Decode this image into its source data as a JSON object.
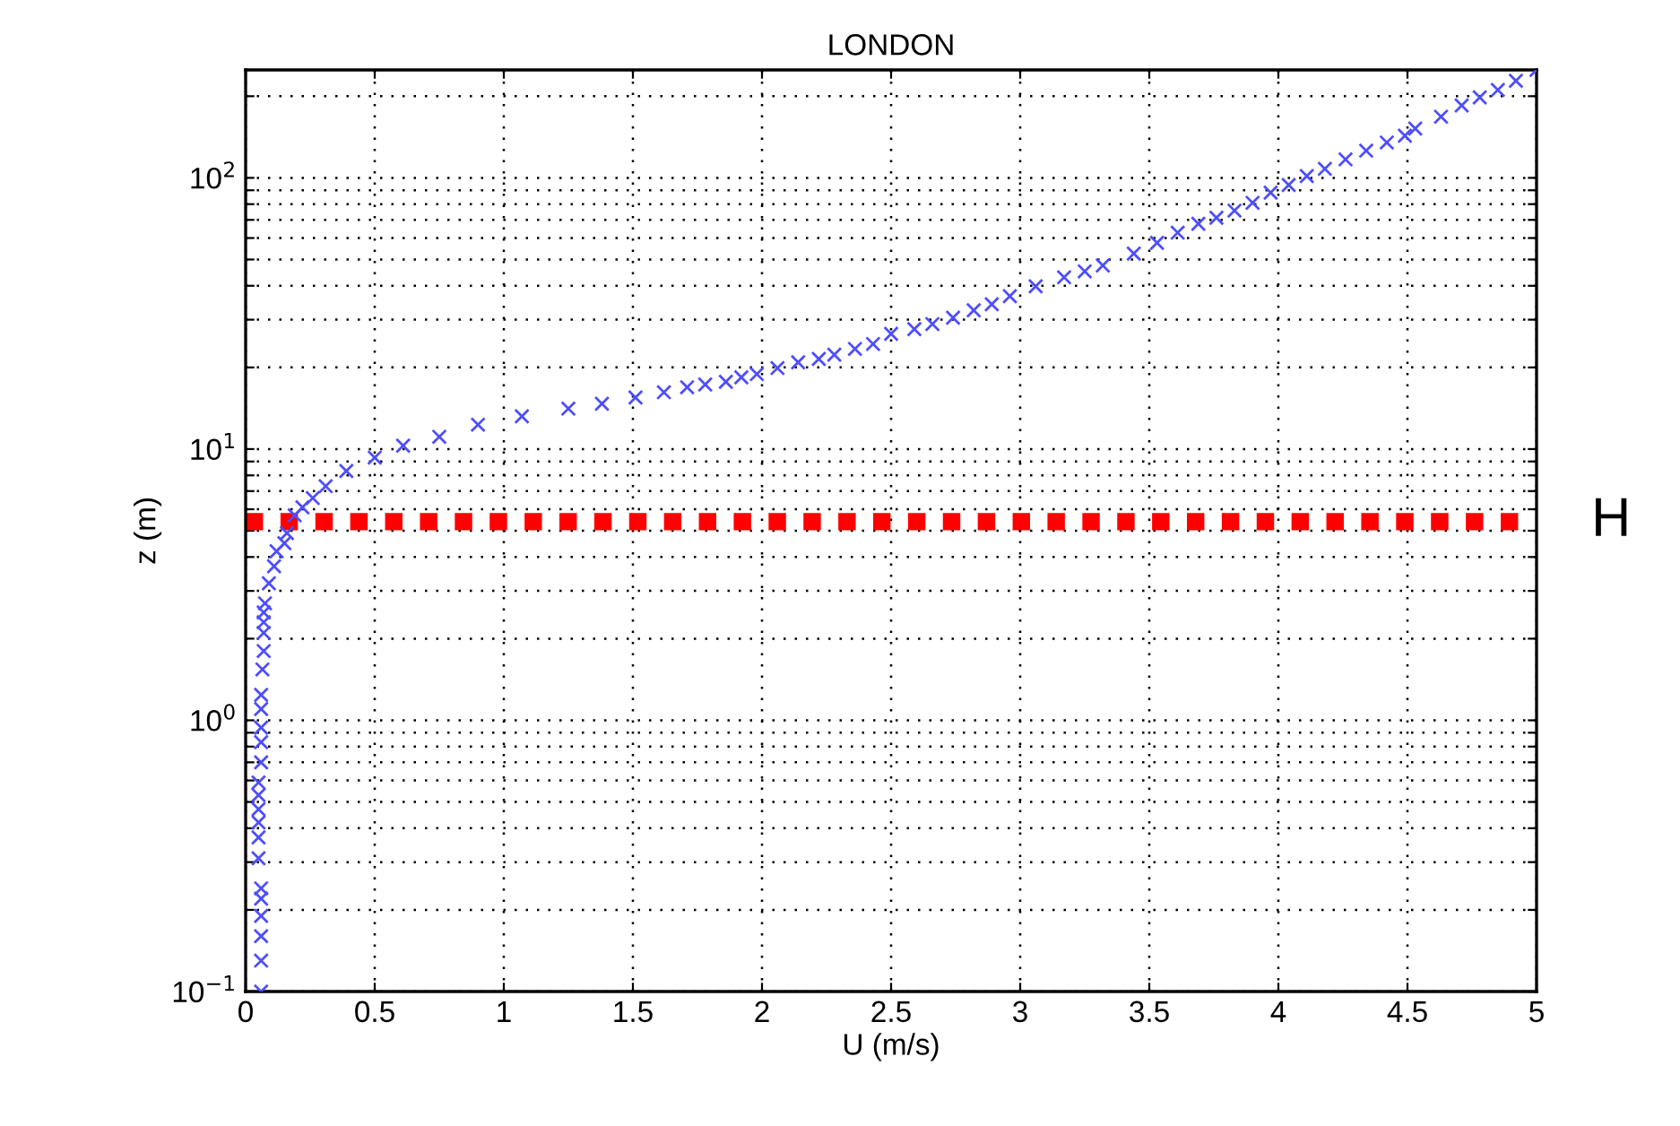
{
  "chart_data": {
    "type": "scatter",
    "title": "LONDON",
    "xlabel": "U (m/s)",
    "ylabel": "z (m)",
    "log": "y",
    "grid": true,
    "marker": "cross",
    "xlim": [
      0,
      5
    ],
    "xticks": [
      0,
      0.5,
      1,
      1.5,
      2,
      2.5,
      3,
      3.5,
      4,
      4.5,
      5
    ],
    "ylim": [
      0.1,
      250
    ],
    "yticks": [
      {
        "value": 0.1,
        "label": "10$^{−1}$"
      },
      {
        "value": 0.2,
        "label": null
      },
      {
        "value": 0.3,
        "label": null
      },
      {
        "value": 0.4,
        "label": null
      },
      {
        "value": 0.5,
        "label": null
      },
      {
        "value": 0.6,
        "label": null
      },
      {
        "value": 0.7,
        "label": null
      },
      {
        "value": 0.8,
        "label": null
      },
      {
        "value": 0.9,
        "label": null
      },
      {
        "value": 1,
        "label": "10$^{0}$"
      },
      {
        "value": 2,
        "label": null
      },
      {
        "value": 3,
        "label": null
      },
      {
        "value": 4,
        "label": null
      },
      {
        "value": 5,
        "label": null
      },
      {
        "value": 6,
        "label": null
      },
      {
        "value": 7,
        "label": null
      },
      {
        "value": 8,
        "label": null
      },
      {
        "value": 9,
        "label": null
      },
      {
        "value": 10,
        "label": "10$^{1}$"
      },
      {
        "value": 20,
        "label": null
      },
      {
        "value": 30,
        "label": null
      },
      {
        "value": 40,
        "label": null
      },
      {
        "value": 50,
        "label": null
      },
      {
        "value": 60,
        "label": null
      },
      {
        "value": 70,
        "label": null
      },
      {
        "value": 80,
        "label": null
      },
      {
        "value": 90,
        "label": null
      },
      {
        "value": 100,
        "label": "10$^{2}$"
      },
      {
        "value": 200,
        "label": null
      }
    ],
    "series": [
      {
        "color": "#4d4dff",
        "x": [
          0.06,
          0.06,
          0.06,
          0.06,
          0.06,
          0.06,
          0.05,
          0.05,
          0.05,
          0.05,
          0.05,
          0.05,
          0.06,
          0.06,
          0.06,
          0.06,
          0.06,
          0.065,
          0.07,
          0.07,
          0.07,
          0.07,
          0.075,
          0.09,
          0.11,
          0.12,
          0.15,
          0.16,
          0.19,
          0.22,
          0.26,
          0.31,
          0.39,
          0.5,
          0.61,
          0.75,
          0.9,
          1.07,
          1.25,
          1.38,
          1.51,
          1.62,
          1.71,
          1.78,
          1.86,
          1.92,
          1.98,
          2.06,
          2.14,
          2.22,
          2.28,
          2.36,
          2.43,
          2.5,
          2.59,
          2.66,
          2.74,
          2.82,
          2.89,
          2.96,
          3.06,
          3.17,
          3.25,
          3.32,
          3.44,
          3.53,
          3.61,
          3.69,
          3.76,
          3.83,
          3.9,
          3.97,
          4.04,
          4.11,
          4.18,
          4.26,
          4.34,
          4.42,
          4.49,
          4.53,
          4.63,
          4.71,
          4.78,
          4.85,
          4.92,
          5.0
        ],
        "values": [
          0.1,
          0.13,
          0.16,
          0.19,
          0.22,
          0.24,
          0.31,
          0.37,
          0.42,
          0.47,
          0.53,
          0.59,
          0.7,
          0.83,
          0.94,
          1.1,
          1.24,
          1.54,
          1.8,
          2.1,
          2.3,
          2.5,
          2.7,
          3.2,
          3.7,
          4.2,
          4.5,
          4.9,
          5.7,
          6.1,
          6.6,
          7.3,
          8.3,
          9.3,
          10.3,
          11.1,
          12.3,
          13.2,
          14.1,
          14.7,
          15.5,
          16.2,
          16.9,
          17.3,
          17.7,
          18.4,
          18.9,
          19.9,
          20.9,
          21.5,
          22.3,
          23.4,
          24.4,
          26.6,
          27.7,
          28.9,
          30.5,
          32.5,
          34.2,
          36.6,
          39.8,
          43,
          45.2,
          47.5,
          52.6,
          57.6,
          62.8,
          67.7,
          71.3,
          75.7,
          80.9,
          88.2,
          94.1,
          101.6,
          108,
          117,
          126,
          135,
          143,
          152,
          168,
          185,
          198,
          211,
          228,
          250
        ]
      }
    ],
    "ref_lines": [
      {
        "axis": "y",
        "value": 5.4,
        "label": "H",
        "color": "#ff0000",
        "line_style": "dotted"
      }
    ]
  }
}
